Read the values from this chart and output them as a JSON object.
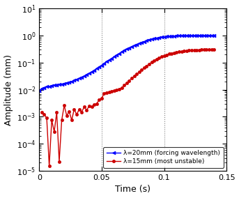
{
  "title": "",
  "xlabel": "Time (s)",
  "ylabel": "Amplitude (mm)",
  "xlim": [
    0,
    0.15
  ],
  "ylim": [
    1e-05,
    10
  ],
  "xticks": [
    0,
    0.05,
    0.1,
    0.15
  ],
  "xtick_labels": [
    "0",
    "0.05",
    "0.1",
    "0.15"
  ],
  "vlines": [
    0.05,
    0.1
  ],
  "blue_color": "#0000FF",
  "red_color": "#CC0000",
  "legend_labels": [
    "λ=20mm (forcing wavelength)",
    "λ=15mm (most unstable)"
  ],
  "bg_color": "#FFFFFF",
  "blue_x": [
    0.0,
    0.002,
    0.004,
    0.006,
    0.008,
    0.01,
    0.012,
    0.014,
    0.016,
    0.018,
    0.02,
    0.022,
    0.024,
    0.026,
    0.028,
    0.03,
    0.032,
    0.034,
    0.036,
    0.038,
    0.04,
    0.042,
    0.044,
    0.046,
    0.048,
    0.05,
    0.052,
    0.054,
    0.056,
    0.058,
    0.06,
    0.062,
    0.064,
    0.066,
    0.068,
    0.07,
    0.072,
    0.074,
    0.076,
    0.078,
    0.08,
    0.082,
    0.084,
    0.086,
    0.088,
    0.09,
    0.092,
    0.094,
    0.096,
    0.098,
    0.1,
    0.102,
    0.104,
    0.106,
    0.108,
    0.11,
    0.112,
    0.114,
    0.116,
    0.118,
    0.12,
    0.122,
    0.124,
    0.126,
    0.128,
    0.13,
    0.132,
    0.134,
    0.136,
    0.138,
    0.14
  ],
  "blue_y": [
    0.009,
    0.011,
    0.012,
    0.013,
    0.013,
    0.014,
    0.015,
    0.015,
    0.016,
    0.016,
    0.017,
    0.018,
    0.019,
    0.02,
    0.022,
    0.024,
    0.026,
    0.029,
    0.032,
    0.036,
    0.04,
    0.046,
    0.052,
    0.06,
    0.069,
    0.08,
    0.093,
    0.108,
    0.125,
    0.143,
    0.165,
    0.19,
    0.218,
    0.248,
    0.28,
    0.315,
    0.352,
    0.39,
    0.43,
    0.47,
    0.51,
    0.555,
    0.6,
    0.645,
    0.688,
    0.73,
    0.768,
    0.805,
    0.838,
    0.868,
    0.895,
    0.915,
    0.933,
    0.948,
    0.96,
    0.97,
    0.978,
    0.983,
    0.988,
    0.99,
    0.993,
    0.995,
    0.997,
    0.998,
    0.999,
    0.999,
    1.0,
    1.0,
    1.0,
    1.0,
    1.0
  ],
  "red_x": [
    0.002,
    0.004,
    0.006,
    0.008,
    0.01,
    0.012,
    0.014,
    0.016,
    0.018,
    0.02,
    0.022,
    0.024,
    0.026,
    0.028,
    0.03,
    0.032,
    0.034,
    0.036,
    0.038,
    0.04,
    0.042,
    0.044,
    0.046,
    0.048,
    0.05,
    0.052,
    0.054,
    0.056,
    0.058,
    0.06,
    0.062,
    0.064,
    0.066,
    0.068,
    0.07,
    0.072,
    0.074,
    0.076,
    0.078,
    0.08,
    0.082,
    0.084,
    0.086,
    0.088,
    0.09,
    0.092,
    0.094,
    0.096,
    0.098,
    0.1,
    0.102,
    0.104,
    0.106,
    0.108,
    0.11,
    0.112,
    0.114,
    0.116,
    0.118,
    0.12,
    0.122,
    0.124,
    0.126,
    0.128,
    0.13,
    0.132,
    0.134,
    0.136,
    0.138,
    0.14
  ],
  "red_y": [
    0.0015,
    0.0012,
    0.0009,
    1.5e-05,
    0.00075,
    0.00028,
    0.00145,
    2.2e-05,
    0.00075,
    0.0026,
    0.0011,
    0.00155,
    0.00075,
    0.0019,
    0.0012,
    0.0019,
    0.0015,
    0.0023,
    0.00175,
    0.0025,
    0.0023,
    0.00285,
    0.003,
    0.0042,
    0.0048,
    0.0072,
    0.0079,
    0.0082,
    0.0087,
    0.0092,
    0.0097,
    0.0106,
    0.0117,
    0.0145,
    0.0175,
    0.0215,
    0.0265,
    0.0315,
    0.0375,
    0.0445,
    0.0535,
    0.0635,
    0.0755,
    0.089,
    0.104,
    0.119,
    0.134,
    0.149,
    0.164,
    0.179,
    0.194,
    0.209,
    0.219,
    0.229,
    0.239,
    0.249,
    0.259,
    0.269,
    0.274,
    0.279,
    0.284,
    0.289,
    0.292,
    0.295,
    0.297,
    0.299,
    0.299,
    0.299,
    0.299,
    0.299
  ]
}
